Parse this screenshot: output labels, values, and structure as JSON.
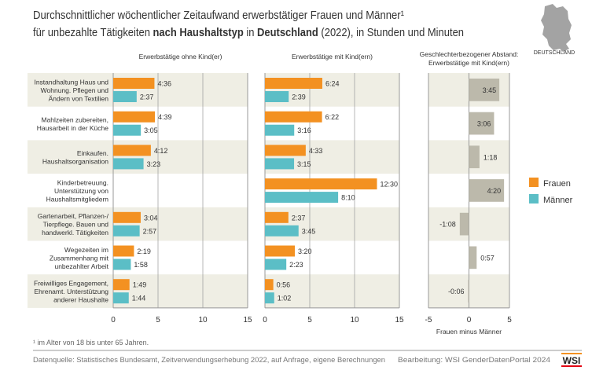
{
  "title_line1": "Durchschnittlicher wöchentlicher Zeitaufwand erwerbstätiger Frauen und Männer¹",
  "title_line2_parts": [
    "für unbezahlte Tätigkeiten ",
    "nach Haushaltstyp",
    " in ",
    "Deutschland",
    " (2022), in Stunden und Minuten"
  ],
  "map_label": "DEUTSCHLAND",
  "footnote": "¹ im Alter von 18 bis unter 65 Jahren.",
  "source": "Datenquelle: Statistisches Bundesamt, Zeitverwendungserhebung 2022, auf Anfrage, eigene Berechnungen",
  "editor": "Bearbeitung: WSI GenderDatenPortal 2024",
  "logo": "WSI",
  "colors": {
    "frauen": "#f39121",
    "maenner": "#5bbec6",
    "gap": "#bcb9ab",
    "stripe": "#efeee4"
  },
  "chart_data": [
    {
      "type": "bar",
      "title": "Erwerbstätige ohne Kind(er)",
      "xlim": [
        0,
        15
      ],
      "xticks": [
        "0",
        "5",
        "10",
        "15"
      ],
      "categories": [
        "Instandhaltung Haus und|Wohnung. Pflegen und|Ändern von Textilien",
        "Mahlzeiten zubereiten,|Hausarbeit in der Küche",
        "Einkaufen.|Haushaltsorganisation",
        "Kinderbetreuung.|Unterstützung von|Haushaltsmitgliedern",
        "Gartenarbeit, Pflanzen-/|Tierpflege. Bauen und|handwerkl. Tätigkeiten",
        "Wegezeiten im|Zusammenhang mit|unbezahlter Arbeit",
        "Freiwilliges Engagement,|Ehrenamt. Unterstützung|anderer Haushalte"
      ],
      "series": [
        {
          "name": "Frauen",
          "values": [
            "4:36",
            "4:39",
            "4:12",
            null,
            "3:04",
            "2:19",
            "1:49"
          ]
        },
        {
          "name": "Männer",
          "values": [
            "2:37",
            "3:05",
            "3:23",
            null,
            "2:57",
            "1:58",
            "1:44"
          ]
        }
      ]
    },
    {
      "type": "bar",
      "title": "Erwerbstätige mit Kind(ern)",
      "xlim": [
        0,
        15
      ],
      "xticks": [
        "0",
        "5",
        "10",
        "15"
      ],
      "series": [
        {
          "name": "Frauen",
          "values": [
            "6:24",
            "6:22",
            "4:33",
            "12:30",
            "2:37",
            "3:20",
            "0:56"
          ]
        },
        {
          "name": "Männer",
          "values": [
            "2:39",
            "3:16",
            "3:15",
            "8:10",
            "3:45",
            "2:23",
            "1:02"
          ]
        }
      ]
    },
    {
      "type": "bar",
      "title": "Geschlechterbezogener Abstand:|Erwerbstätige mit Kind(ern)",
      "xlabel": "Frauen minus Männer",
      "xlim": [
        -5,
        5
      ],
      "xticks": [
        "-5",
        "0",
        "5"
      ],
      "series": [
        {
          "values": [
            "3:45",
            "3:06",
            "1:18",
            "4:20",
            "-1:08",
            "0:57",
            "-0:06"
          ]
        }
      ]
    }
  ],
  "legend": [
    "Frauen",
    "Männer"
  ]
}
